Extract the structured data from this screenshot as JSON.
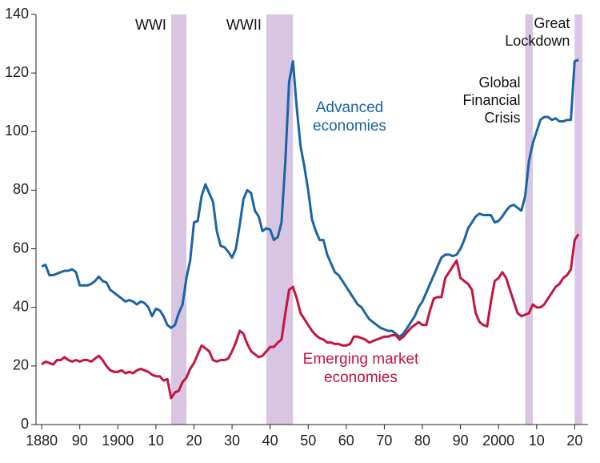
{
  "chart_data": {
    "type": "line",
    "x": [
      1880,
      1881,
      1882,
      1883,
      1884,
      1885,
      1886,
      1887,
      1888,
      1889,
      1890,
      1891,
      1892,
      1893,
      1894,
      1895,
      1896,
      1897,
      1898,
      1899,
      1900,
      1901,
      1902,
      1903,
      1904,
      1905,
      1906,
      1907,
      1908,
      1909,
      1910,
      1911,
      1912,
      1913,
      1914,
      1915,
      1916,
      1917,
      1918,
      1919,
      1920,
      1921,
      1922,
      1923,
      1924,
      1925,
      1926,
      1927,
      1928,
      1929,
      1930,
      1931,
      1932,
      1933,
      1934,
      1935,
      1936,
      1937,
      1938,
      1939,
      1940,
      1941,
      1942,
      1943,
      1944,
      1945,
      1946,
      1947,
      1948,
      1949,
      1950,
      1951,
      1952,
      1953,
      1954,
      1955,
      1956,
      1957,
      1958,
      1959,
      1960,
      1961,
      1962,
      1963,
      1964,
      1965,
      1966,
      1967,
      1968,
      1969,
      1970,
      1971,
      1972,
      1973,
      1974,
      1975,
      1976,
      1977,
      1978,
      1979,
      1980,
      1981,
      1982,
      1983,
      1984,
      1985,
      1986,
      1987,
      1988,
      1989,
      1990,
      1991,
      1992,
      1993,
      1994,
      1995,
      1996,
      1997,
      1998,
      1999,
      2000,
      2001,
      2002,
      2003,
      2004,
      2005,
      2006,
      2007,
      2008,
      2009,
      2010,
      2011,
      2012,
      2013,
      2014,
      2015,
      2016,
      2017,
      2018,
      2019,
      2020,
      2021
    ],
    "series": [
      {
        "name": "Advanced economies",
        "color": "#1a64a6",
        "values": [
          54,
          54.5,
          51,
          51,
          51.5,
          52,
          52.5,
          52.5,
          53,
          52,
          47.5,
          47.5,
          47.5,
          48,
          49,
          50.5,
          49,
          48.5,
          46,
          45,
          44,
          43,
          42,
          42.5,
          42,
          41,
          42,
          41.5,
          40,
          37,
          39.5,
          39,
          37,
          34,
          33,
          34,
          38,
          41,
          50,
          56,
          69,
          69.5,
          78,
          82,
          79,
          76,
          66,
          61,
          60.5,
          59,
          57,
          60,
          68,
          77,
          80,
          79,
          73,
          71,
          66,
          67,
          66.5,
          63,
          64,
          69,
          90,
          117,
          124,
          108,
          95,
          88,
          80,
          70,
          66,
          63,
          63,
          58,
          55,
          52,
          51,
          49,
          47,
          45,
          43,
          41,
          40,
          38,
          36,
          35,
          34,
          33,
          32.5,
          32,
          32,
          31,
          30,
          31,
          33,
          35,
          37,
          40,
          42,
          45,
          48,
          51,
          54,
          57,
          58,
          58,
          57.5,
          58,
          60,
          63,
          67,
          69,
          71,
          72,
          71.5,
          71.5,
          71.5,
          69,
          69.5,
          71,
          73,
          74.5,
          75,
          74,
          73,
          78,
          90,
          96,
          100,
          104,
          105,
          105,
          104,
          104.5,
          103.5,
          103.5,
          104,
          104,
          124,
          124.5
        ]
      },
      {
        "name": "Emerging market economies",
        "color": "#c4143f",
        "values": [
          20.5,
          21.5,
          21,
          20.5,
          22,
          22,
          23,
          22,
          21.5,
          22,
          21.5,
          22,
          22,
          21.5,
          22.5,
          23.5,
          22,
          20,
          18.5,
          18,
          18,
          18.5,
          17.5,
          18,
          17.5,
          18.5,
          19,
          18.5,
          18,
          17,
          16.5,
          16.5,
          15,
          15.5,
          9,
          11,
          11.5,
          14.5,
          16,
          19,
          21,
          24,
          27,
          26,
          25,
          22,
          21.5,
          22,
          22,
          22.5,
          25,
          28,
          32,
          31,
          27.5,
          25,
          24,
          23,
          23.5,
          25,
          26.5,
          26.5,
          28,
          29,
          38,
          46,
          47,
          43,
          38,
          36,
          34,
          32,
          30.5,
          29.5,
          29,
          28,
          28,
          27.5,
          27.5,
          27,
          27,
          27.5,
          30,
          30,
          29.5,
          29,
          28,
          28.5,
          29,
          29.5,
          30,
          30,
          30.5,
          30.5,
          29,
          30,
          31.5,
          33,
          34,
          35,
          34,
          34,
          39,
          43,
          43.5,
          43.5,
          50,
          52,
          54,
          56,
          50,
          49,
          48,
          46,
          38,
          35,
          34,
          33.5,
          42,
          49,
          50,
          52,
          50,
          46,
          42,
          38,
          37,
          37.5,
          38,
          41,
          40,
          40,
          41,
          43,
          45,
          47,
          48,
          50,
          51,
          53,
          63,
          65
        ]
      }
    ],
    "shaded_periods": [
      {
        "label": "WWI",
        "start": 1914,
        "end": 1918
      },
      {
        "label": "WWII",
        "start": 1939,
        "end": 1946
      },
      {
        "label": "Global Financial Crisis",
        "start": 2007,
        "end": 2009
      },
      {
        "label": "Great Lockdown",
        "start": 2020,
        "end": 2022
      },
      "shade_color"
    ],
    "shade_color": "#d8c5e2",
    "xlim": [
      1878.5,
      2023.5
    ],
    "xticks": [
      1880,
      {
        "value": 1890,
        "label": "90"
      },
      1900,
      {
        "value": 1910,
        "label": "10"
      },
      {
        "value": 1920,
        "label": "20"
      },
      {
        "value": 1930,
        "label": "30"
      },
      {
        "value": 1940,
        "label": "40"
      },
      {
        "value": 1950,
        "label": "50"
      },
      {
        "value": 1960,
        "label": "60"
      },
      {
        "value": 1970,
        "label": "70"
      },
      {
        "value": 1980,
        "label": "80"
      },
      {
        "value": 1990,
        "label": "90"
      },
      2000,
      {
        "value": 2010,
        "label": "10"
      },
      {
        "value": 2020,
        "label": "20"
      }
    ],
    "ylim": [
      0,
      140
    ],
    "yticks": [
      0,
      20,
      40,
      60,
      80,
      100,
      120,
      140
    ]
  }
}
